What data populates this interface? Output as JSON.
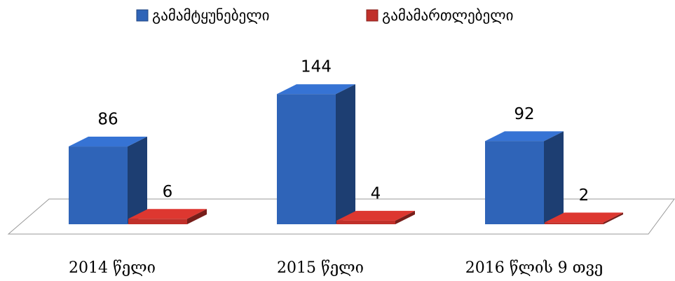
{
  "chart_data": {
    "type": "bar3d",
    "categories": [
      "2014 წელი",
      "2015 წელი",
      "2016 წლის 9 თვე"
    ],
    "series": [
      {
        "name": "გამამტყუნებელი",
        "color": "#2f64b8",
        "values": [
          86,
          144,
          92
        ]
      },
      {
        "name": "გამამართლებელი",
        "color": "#c0302a",
        "values": [
          6,
          4,
          2
        ]
      }
    ],
    "legend": "top"
  }
}
